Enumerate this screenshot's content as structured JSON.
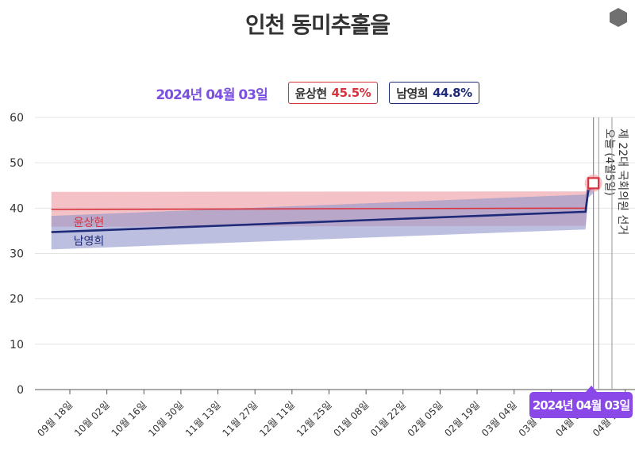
{
  "page": {
    "title": "인천 동미추홀을"
  },
  "header": {
    "date": "2024년 04월 03일",
    "candidates": [
      {
        "name": "윤상현",
        "value": "45.5%",
        "color": "#d9323d"
      },
      {
        "name": "남영희",
        "value": "44.8%",
        "color": "#1e2a78"
      }
    ]
  },
  "tooltip": {
    "date": "2024년 04월 03일"
  },
  "chart_data": {
    "type": "line",
    "title": "인천 동미추홀을",
    "ylim": [
      0,
      60
    ],
    "yticks": [
      0,
      10,
      20,
      30,
      40,
      50,
      60
    ],
    "grid": true,
    "x_tick_labels": [
      "09월 18일",
      "10월 02일",
      "10월 16일",
      "10월 30일",
      "11월 13일",
      "11월 27일",
      "12월 11일",
      "12월 25일",
      "01월 08일",
      "01월 22일",
      "02월 05일",
      "02월 19일",
      "03월 04일",
      "03월 18일",
      "04월 01일",
      "04월 15일"
    ],
    "x_tick_dates": [
      "2023-09-18",
      "2023-10-02",
      "2023-10-16",
      "2023-10-30",
      "2023-11-13",
      "2023-11-27",
      "2023-12-11",
      "2023-12-25",
      "2024-01-08",
      "2024-01-22",
      "2024-02-05",
      "2024-02-19",
      "2024-03-04",
      "2024-03-18",
      "2024-04-01",
      "2024-04-15"
    ],
    "series": [
      {
        "name": "윤상현",
        "color": "#d9323d",
        "band_color": "#ec9aa0",
        "points": [
          {
            "date": "2023-09-11",
            "value": 39.7,
            "low": 35.9,
            "high": 43.6
          },
          {
            "date": "2024-03-31",
            "value": 40.0,
            "low": 36.1,
            "high": 43.7
          },
          {
            "date": "2024-04-01",
            "value": 44.5,
            "low": 43.0,
            "high": 46.0
          },
          {
            "date": "2024-04-03",
            "value": 45.5,
            "low": 44.0,
            "high": 47.0
          }
        ]
      },
      {
        "name": "남영희",
        "color": "#1e2a78",
        "band_color": "#8f95cc",
        "points": [
          {
            "date": "2023-09-11",
            "value": 34.7,
            "low": 30.9,
            "high": 38.3
          },
          {
            "date": "2024-03-31",
            "value": 39.2,
            "low": 35.3,
            "high": 43.0
          },
          {
            "date": "2024-04-01",
            "value": 43.8,
            "low": 42.3,
            "high": 45.3
          },
          {
            "date": "2024-04-03",
            "value": 44.8,
            "low": 43.3,
            "high": 46.3
          }
        ]
      }
    ],
    "annotations": [
      {
        "date": "2024-04-05",
        "label": "오늘 (4월5일)"
      },
      {
        "date": "2024-04-10",
        "label": "제 22대 국회의원 선거"
      }
    ],
    "highlight": {
      "date": "2024-04-03"
    }
  }
}
